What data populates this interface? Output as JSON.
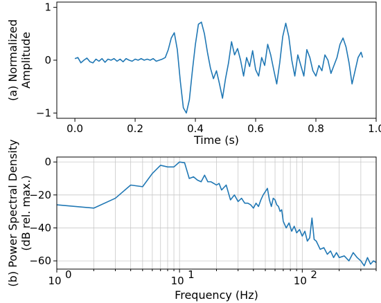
{
  "chart_data": [
    {
      "type": "line",
      "xlabel": "Time (s)",
      "ylabel": [
        "(a) Normalized",
        "Amplitude"
      ],
      "xlim": [
        -0.06,
        1.0
      ],
      "ylim": [
        -1.1,
        1.1
      ],
      "xticks": [
        0.0,
        0.2,
        0.4,
        0.6,
        0.8,
        1.0
      ],
      "xtick_labels": [
        "0.0",
        "0.2",
        "0.4",
        "0.6",
        "0.8",
        "1.0"
      ],
      "yticks": [
        1,
        0,
        -1
      ],
      "ytick_labels": [
        "1",
        "0",
        "−1"
      ],
      "grid": false,
      "color": "#1f77b4",
      "x": [
        0.0,
        0.01,
        0.02,
        0.03,
        0.04,
        0.05,
        0.06,
        0.07,
        0.08,
        0.09,
        0.1,
        0.11,
        0.12,
        0.13,
        0.14,
        0.15,
        0.16,
        0.17,
        0.18,
        0.19,
        0.2,
        0.21,
        0.22,
        0.23,
        0.24,
        0.25,
        0.26,
        0.27,
        0.28,
        0.29,
        0.3,
        0.31,
        0.32,
        0.33,
        0.34,
        0.35,
        0.36,
        0.37,
        0.38,
        0.39,
        0.4,
        0.41,
        0.42,
        0.43,
        0.44,
        0.45,
        0.46,
        0.47,
        0.48,
        0.49,
        0.5,
        0.51,
        0.52,
        0.53,
        0.54,
        0.55,
        0.56,
        0.57,
        0.58,
        0.59,
        0.6,
        0.61,
        0.62,
        0.63,
        0.64,
        0.65,
        0.66,
        0.67,
        0.68,
        0.69,
        0.7,
        0.71,
        0.72,
        0.73,
        0.74,
        0.75,
        0.76,
        0.77,
        0.78,
        0.79,
        0.8,
        0.81,
        0.82,
        0.83,
        0.84,
        0.85,
        0.86,
        0.87,
        0.88,
        0.89,
        0.9,
        0.91,
        0.92,
        0.93,
        0.94,
        0.95,
        0.955
      ],
      "y": [
        0.03,
        0.05,
        -0.05,
        0.0,
        0.04,
        -0.03,
        -0.05,
        0.02,
        -0.02,
        0.03,
        -0.04,
        0.02,
        0.0,
        0.03,
        -0.02,
        0.02,
        -0.03,
        0.03,
        0.0,
        -0.02,
        0.02,
        0.0,
        0.03,
        0.0,
        0.02,
        0.0,
        0.03,
        -0.02,
        0.0,
        0.02,
        0.05,
        0.2,
        0.42,
        0.52,
        0.2,
        -0.4,
        -0.9,
        -1.0,
        -0.75,
        -0.2,
        0.3,
        0.68,
        0.72,
        0.5,
        0.15,
        -0.15,
        -0.35,
        -0.2,
        -0.45,
        -0.72,
        -0.35,
        -0.05,
        0.35,
        0.1,
        0.22,
        0.0,
        -0.3,
        0.05,
        -0.12,
        0.18,
        -0.18,
        -0.3,
        0.05,
        -0.1,
        0.3,
        0.1,
        -0.18,
        -0.45,
        -0.05,
        0.45,
        0.7,
        0.45,
        0.0,
        -0.3,
        0.1,
        -0.1,
        -0.3,
        0.2,
        0.05,
        -0.2,
        -0.3,
        -0.1,
        -0.2,
        0.1,
        0.0,
        -0.25,
        -0.1,
        0.05,
        0.3,
        0.42,
        0.25,
        -0.05,
        -0.45,
        -0.2,
        0.05,
        0.15,
        0.05
      ]
    },
    {
      "type": "line",
      "xlabel": "Frequency (Hz)",
      "ylabel": [
        "(b) Power Spectral Density",
        "(dB rel. max.)"
      ],
      "xscale": "log",
      "xlim": [
        1,
        400
      ],
      "ylim": [
        -65,
        3
      ],
      "xticks": [
        1,
        10,
        100
      ],
      "xtick_labels": [
        "10",
        "10",
        "10"
      ],
      "xtick_exponents": [
        "0",
        "1",
        "2"
      ],
      "yticks": [
        0,
        -20,
        -40,
        -60
      ],
      "ytick_labels": [
        "0",
        "−20",
        "−40",
        "−60"
      ],
      "grid": true,
      "color": "#1f77b4",
      "x": [
        1,
        2,
        3,
        4,
        5,
        6,
        7,
        8,
        9,
        10,
        11,
        12,
        13,
        14,
        15,
        16,
        17,
        18,
        19,
        20,
        21,
        22,
        24,
        26,
        28,
        30,
        32,
        34,
        36,
        38,
        40,
        42,
        44,
        46,
        48,
        50,
        52,
        54,
        56,
        58,
        60,
        62,
        64,
        66,
        68,
        70,
        74,
        78,
        82,
        86,
        90,
        95,
        100,
        105,
        110,
        115,
        120,
        125,
        130,
        140,
        150,
        160,
        170,
        180,
        190,
        200,
        220,
        240,
        260,
        280,
        300,
        320,
        340,
        360,
        380,
        400
      ],
      "y": [
        -26,
        -28,
        -22,
        -14,
        -15,
        -7,
        -2,
        -3,
        -3,
        0,
        -0.5,
        -10,
        -9,
        -11,
        -12,
        -8,
        -12,
        -12,
        -13,
        -14,
        -13,
        -17,
        -14,
        -23,
        -20,
        -24,
        -22,
        -25,
        -25,
        -26,
        -28,
        -25,
        -27,
        -23,
        -20,
        -18,
        -16,
        -23,
        -27,
        -22,
        -23,
        -26,
        -27,
        -30,
        -29,
        -36,
        -40,
        -37,
        -42,
        -39,
        -43,
        -41,
        -45,
        -42,
        -48,
        -46,
        -34,
        -47,
        -48,
        -53,
        -52,
        -56,
        -54,
        -58,
        -55,
        -58,
        -57,
        -60,
        -55,
        -58,
        -60,
        -63,
        -58,
        -62,
        -60,
        -61
      ]
    }
  ]
}
